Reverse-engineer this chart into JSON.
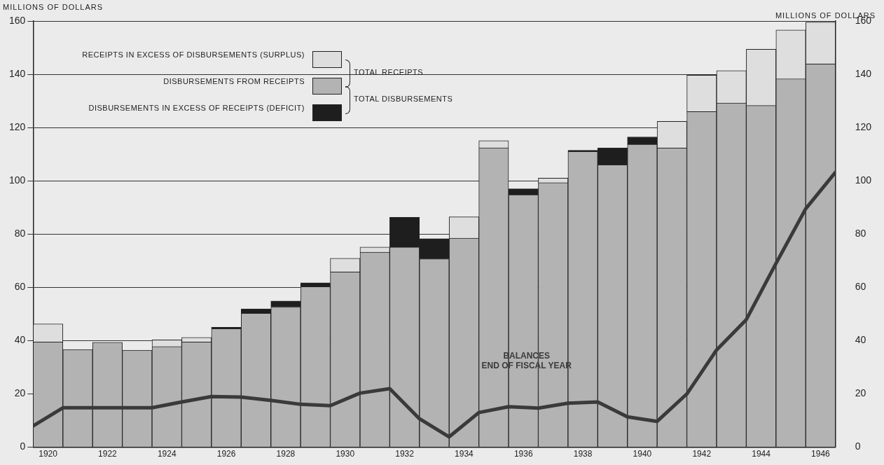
{
  "chart_data": {
    "type": "bar",
    "stacked": true,
    "x": [
      1920,
      1921,
      1922,
      1923,
      1924,
      1925,
      1926,
      1927,
      1928,
      1929,
      1930,
      1931,
      1932,
      1933,
      1934,
      1935,
      1936,
      1937,
      1938,
      1939,
      1940,
      1941,
      1942,
      1943,
      1944,
      1945,
      1946
    ],
    "xlim": [
      1919.5,
      1946.5
    ],
    "xticks": [
      1920,
      1922,
      1924,
      1926,
      1928,
      1930,
      1932,
      1934,
      1936,
      1938,
      1940,
      1942,
      1944,
      1946
    ],
    "ylabel": "MILLIONS OF DOLLARS",
    "y2label": "MILLIONS OF DOLLARS",
    "ylim": [
      0,
      160
    ],
    "yticks": [
      0,
      20,
      40,
      60,
      80,
      100,
      120,
      140,
      160
    ],
    "y2lim": [
      0,
      160
    ],
    "y2ticks": [
      0,
      20,
      40,
      60,
      80,
      100,
      120,
      140,
      160
    ],
    "grid": "y",
    "legend": "top left",
    "marker": "none",
    "line_style": "solid",
    "series": [
      {
        "name": "DISBURSEMENTS FROM RECEIPTS",
        "color": "#b3b3b3",
        "values": [
          39.5,
          36.7,
          39.4,
          36.4,
          37.8,
          39.5,
          44.5,
          50.3,
          52.6,
          60.3,
          65.8,
          73.2,
          75.1,
          70.7,
          78.5,
          112.4,
          94.8,
          99.3,
          111,
          106,
          113.7,
          112.3,
          126,
          129.2,
          128.3,
          138.3,
          143.9
        ]
      },
      {
        "name": "RECEIPTS IN EXCESS OF DISBURSEMENTS (SURPLUS)",
        "color": "#dedede",
        "values": [
          6.8,
          null,
          null,
          null,
          2.5,
          1.7,
          null,
          null,
          null,
          null,
          5.1,
          1.9,
          null,
          null,
          8,
          2.7,
          null,
          1.7,
          null,
          null,
          null,
          10,
          13.7,
          12.2,
          21.1,
          18.3,
          15.7
        ]
      },
      {
        "name": "DISBURSEMENTS IN EXCESS OF RECEIPTS (DEFICIT)",
        "color": "#1e1e1e",
        "values": [
          null,
          null,
          null,
          null,
          null,
          null,
          0.5,
          1.6,
          2.3,
          1.4,
          null,
          null,
          11.2,
          7.6,
          null,
          null,
          2.2,
          null,
          0.5,
          6.3,
          2.8,
          null,
          null,
          null,
          null,
          null,
          null
        ]
      },
      {
        "name": "BALANCES END OF FISCAL YEAR",
        "type": "line",
        "color": "#3a3a3a",
        "x": [
          1919.5,
          1920.5,
          1921.5,
          1922.5,
          1923.5,
          1924.5,
          1925.5,
          1926.5,
          1927.5,
          1928.5,
          1929.5,
          1930.5,
          1931.5,
          1932.5,
          1933.5,
          1934.5,
          1935.5,
          1936.5,
          1937.5,
          1938.5,
          1939.5,
          1940.5,
          1941.5,
          1942.5,
          1943.5,
          1944.5,
          1945.5,
          1946.5
        ],
        "values": [
          8,
          14.8,
          14.8,
          14.8,
          14.8,
          17,
          19,
          18.8,
          17.6,
          16.1,
          15.6,
          20.3,
          22,
          10.7,
          3.9,
          13,
          15.2,
          14.7,
          16.5,
          17,
          11.4,
          9.7,
          20,
          36.5,
          47.9,
          69,
          89.5,
          103.2
        ]
      }
    ],
    "annotations": [
      "TOTAL RECEIPTS",
      "TOTAL DISBURSEMENTS"
    ]
  }
}
